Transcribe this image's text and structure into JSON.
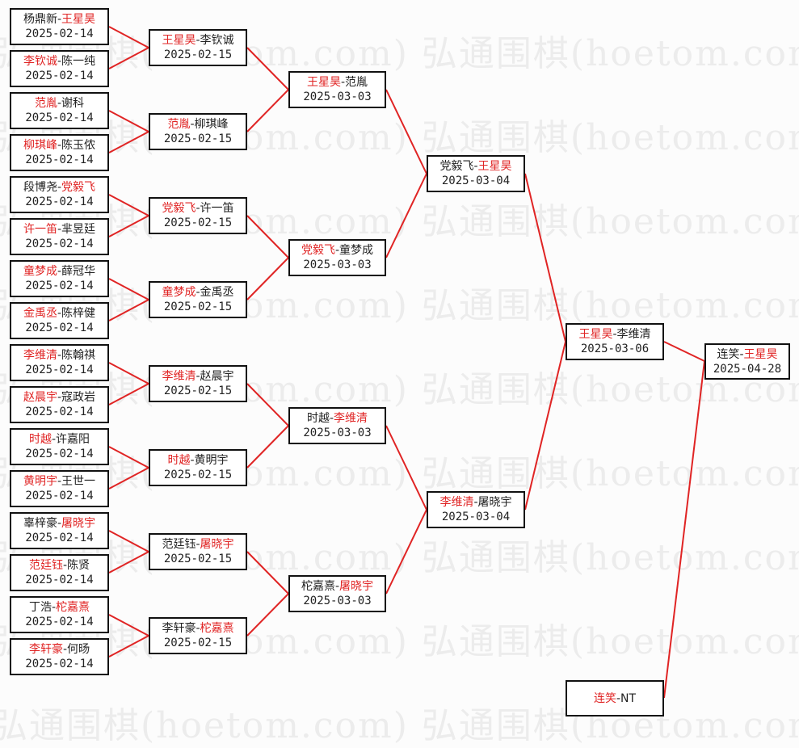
{
  "watermark": "弘通围棋(hoetom.com) 弘通围棋(hoetom.com)",
  "colors": {
    "winner": "#e02424",
    "line": "#e02424",
    "border": "#111111"
  },
  "rounds": [
    [
      {
        "p1": "杨鼎新",
        "p2": "王星昊",
        "winner": 2,
        "date": "2025-02-14"
      },
      {
        "p1": "李钦诚",
        "p2": "陈一纯",
        "winner": 1,
        "date": "2025-02-14"
      },
      {
        "p1": "范胤",
        "p2": "谢科",
        "winner": 1,
        "date": "2025-02-14"
      },
      {
        "p1": "柳琪峰",
        "p2": "陈玉侬",
        "winner": 1,
        "date": "2025-02-14"
      },
      {
        "p1": "段博尧",
        "p2": "党毅飞",
        "winner": 2,
        "date": "2025-02-14"
      },
      {
        "p1": "许一笛",
        "p2": "芈昱廷",
        "winner": 1,
        "date": "2025-02-14"
      },
      {
        "p1": "童梦成",
        "p2": "薛冠华",
        "winner": 1,
        "date": "2025-02-14"
      },
      {
        "p1": "金禹丞",
        "p2": "陈梓健",
        "winner": 1,
        "date": "2025-02-14"
      },
      {
        "p1": "李维清",
        "p2": "陈翰祺",
        "winner": 1,
        "date": "2025-02-14"
      },
      {
        "p1": "赵晨宇",
        "p2": "寇政岩",
        "winner": 1,
        "date": "2025-02-14"
      },
      {
        "p1": "时越",
        "p2": "许嘉阳",
        "winner": 1,
        "date": "2025-02-14"
      },
      {
        "p1": "黄明宇",
        "p2": "王世一",
        "winner": 1,
        "date": "2025-02-14"
      },
      {
        "p1": "辜梓豪",
        "p2": "屠晓宇",
        "winner": 2,
        "date": "2025-02-14"
      },
      {
        "p1": "范廷钰",
        "p2": "陈贤",
        "winner": 1,
        "date": "2025-02-14"
      },
      {
        "p1": "丁浩",
        "p2": "柁嘉熹",
        "winner": 2,
        "date": "2025-02-14"
      },
      {
        "p1": "李轩豪",
        "p2": "何旸",
        "winner": 1,
        "date": "2025-02-14"
      }
    ],
    [
      {
        "p1": "王星昊",
        "p2": "李钦诚",
        "winner": 1,
        "date": "2025-02-15"
      },
      {
        "p1": "范胤",
        "p2": "柳琪峰",
        "winner": 1,
        "date": "2025-02-15"
      },
      {
        "p1": "党毅飞",
        "p2": "许一笛",
        "winner": 1,
        "date": "2025-02-15"
      },
      {
        "p1": "童梦成",
        "p2": "金禹丞",
        "winner": 1,
        "date": "2025-02-15"
      },
      {
        "p1": "李维清",
        "p2": "赵晨宇",
        "winner": 1,
        "date": "2025-02-15"
      },
      {
        "p1": "时越",
        "p2": "黄明宇",
        "winner": 1,
        "date": "2025-02-15"
      },
      {
        "p1": "范廷钰",
        "p2": "屠晓宇",
        "winner": 2,
        "date": "2025-02-15"
      },
      {
        "p1": "李轩豪",
        "p2": "柁嘉熹",
        "winner": 2,
        "date": "2025-02-15"
      }
    ],
    [
      {
        "p1": "王星昊",
        "p2": "范胤",
        "winner": 1,
        "date": "2025-03-03"
      },
      {
        "p1": "党毅飞",
        "p2": "童梦成",
        "winner": 1,
        "date": "2025-03-03"
      },
      {
        "p1": "时越",
        "p2": "李维清",
        "winner": 2,
        "date": "2025-03-03"
      },
      {
        "p1": "柁嘉熹",
        "p2": "屠晓宇",
        "winner": 2,
        "date": "2025-03-03"
      }
    ],
    [
      {
        "p1": "党毅飞",
        "p2": "王星昊",
        "winner": 2,
        "date": "2025-03-04"
      },
      {
        "p1": "李维清",
        "p2": "屠晓宇",
        "winner": 1,
        "date": "2025-03-04"
      }
    ],
    [
      {
        "p1": "王星昊",
        "p2": "李维清",
        "winner": 1,
        "date": "2025-03-06"
      }
    ]
  ],
  "final": {
    "p1": "连笑",
    "p2": "王星昊",
    "winner": 2,
    "date": "2025-04-28"
  },
  "seed": {
    "p1": "连笑",
    "p2": "NT",
    "winner": 1
  }
}
